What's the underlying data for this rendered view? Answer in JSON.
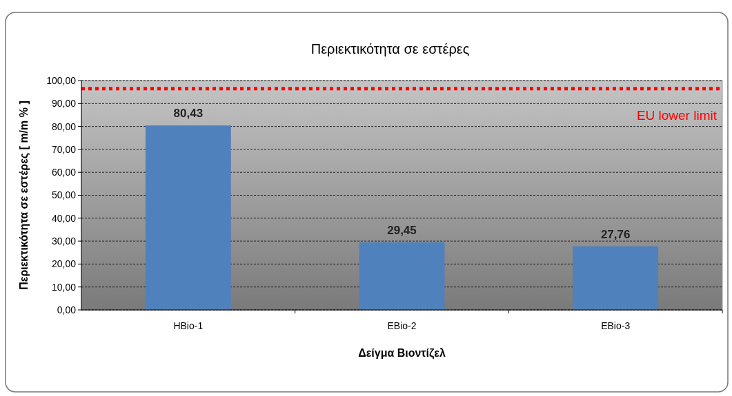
{
  "chart_data": {
    "type": "bar",
    "title": "Περιεκτικότητα σε εστέρες",
    "xlabel": "Δείγμα Βιοντίζελ",
    "ylabel": "Περιεκτικότητα σε εστέρες [ m/m % ]",
    "categories": [
      "HBio-1",
      "EBio-2",
      "EBio-3"
    ],
    "values": [
      80.43,
      29.45,
      27.76
    ],
    "color": "#4f81bd",
    "value_labels": [
      "80,43",
      "29,45",
      "27,76"
    ],
    "ylim": [
      0,
      100
    ],
    "yticks": [
      {
        "value": 0,
        "label": "0,00"
      },
      {
        "value": 10,
        "label": "10,00"
      },
      {
        "value": 20,
        "label": "20,00"
      },
      {
        "value": 30,
        "label": "30,00"
      },
      {
        "value": 40,
        "label": "40,00"
      },
      {
        "value": 50,
        "label": "50,00"
      },
      {
        "value": 60,
        "label": "60,00"
      },
      {
        "value": 70,
        "label": "70,00"
      },
      {
        "value": 80,
        "label": "80,00"
      },
      {
        "value": 90,
        "label": "90,00"
      },
      {
        "value": 100,
        "label": "100,00"
      }
    ],
    "grid": "y",
    "ref_lines": [
      {
        "axis": "y",
        "value": 96.5,
        "label": "EU lower limit",
        "color": "#ff0000",
        "line_style": "dotted"
      }
    ]
  }
}
